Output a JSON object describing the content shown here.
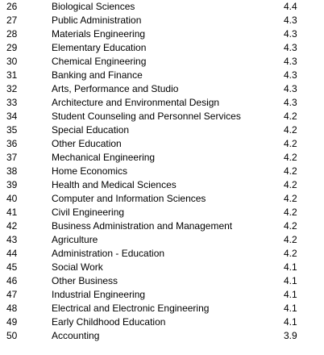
{
  "table": {
    "rows": [
      [
        "26",
        "Biological Sciences",
        "4.4"
      ],
      [
        "27",
        "Public Administration",
        "4.3"
      ],
      [
        "28",
        "Materials Engineering",
        "4.3"
      ],
      [
        "29",
        "Elementary Education",
        "4.3"
      ],
      [
        "30",
        "Chemical Engineering",
        "4.3"
      ],
      [
        "31",
        "Banking and Finance",
        "4.3"
      ],
      [
        "32",
        "Arts, Performance and Studio",
        "4.3"
      ],
      [
        "33",
        "Architecture and Environmental Design",
        "4.3"
      ],
      [
        "34",
        "Student Counseling and Personnel Services",
        "4.2"
      ],
      [
        "35",
        "Special Education",
        "4.2"
      ],
      [
        "36",
        "Other Education",
        "4.2"
      ],
      [
        "37",
        "Mechanical Engineering",
        "4.2"
      ],
      [
        "38",
        "Home Economics",
        "4.2"
      ],
      [
        "39",
        "Health and Medical Sciences",
        "4.2"
      ],
      [
        "40",
        "Computer and Information Sciences",
        "4.2"
      ],
      [
        "41",
        "Civil Engineering",
        "4.2"
      ],
      [
        "42",
        "Business Administration and Management",
        "4.2"
      ],
      [
        "43",
        "Agriculture",
        "4.2"
      ],
      [
        "44",
        "Administration - Education",
        "4.2"
      ],
      [
        "45",
        "Social Work",
        "4.1"
      ],
      [
        "46",
        "Other Business",
        "4.1"
      ],
      [
        "47",
        "Industrial Engineering",
        "4.1"
      ],
      [
        "48",
        "Electrical and Electronic Engineering",
        "4.1"
      ],
      [
        "49",
        "Early Childhood Education",
        "4.1"
      ],
      [
        "50",
        "Accounting",
        "3.9"
      ]
    ]
  }
}
